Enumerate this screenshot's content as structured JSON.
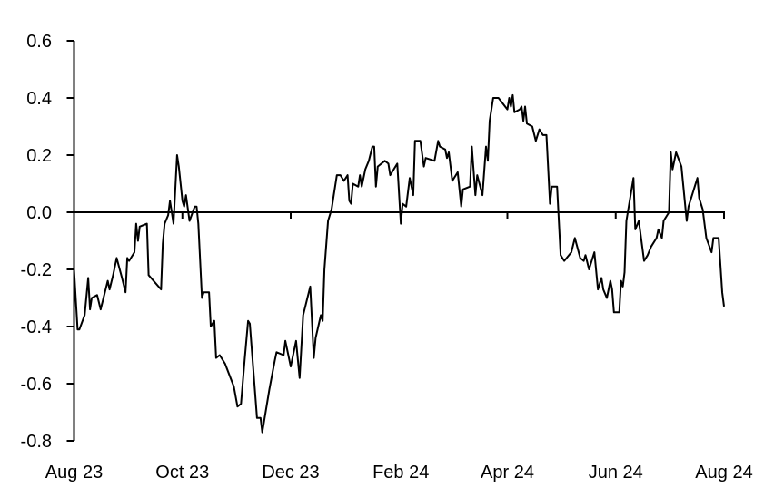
{
  "chart_data": {
    "type": "line",
    "title": "",
    "xlabel": "",
    "ylabel": "",
    "ylim": [
      -0.8,
      0.6
    ],
    "xlim": [
      "2023-08-01",
      "2024-08-01"
    ],
    "grid": false,
    "line_color": "#000000",
    "y_ticks": [
      0.6,
      0.4,
      0.2,
      0.0,
      -0.2,
      -0.4,
      -0.6,
      -0.8
    ],
    "y_tick_labels": [
      "0.6",
      "0.4",
      "0.2",
      "0.0",
      "-0.2",
      "-0.4",
      "-0.6",
      "-0.8"
    ],
    "x_ticks": [
      "2023-08-01",
      "2023-10-01",
      "2023-12-01",
      "2024-02-01",
      "2024-04-01",
      "2024-06-01",
      "2024-08-01"
    ],
    "x_tick_labels": [
      "Aug 23",
      "Oct 23",
      "Dec 23",
      "Feb 24",
      "Apr 24",
      "Jun 24",
      "Aug 24"
    ],
    "series": [
      {
        "x": [
          "2023-08-01",
          "2023-08-03",
          "2023-08-04",
          "2023-08-07",
          "2023-08-09",
          "2023-08-10",
          "2023-08-11",
          "2023-08-14",
          "2023-08-16",
          "2023-08-20",
          "2023-08-21",
          "2023-08-23",
          "2023-08-25",
          "2023-08-28",
          "2023-08-30",
          "2023-08-31",
          "2023-09-01",
          "2023-09-04",
          "2023-09-05",
          "2023-09-06",
          "2023-09-07",
          "2023-09-11",
          "2023-09-12",
          "2023-09-19",
          "2023-09-20",
          "2023-09-21",
          "2023-09-23",
          "2023-09-24",
          "2023-09-26",
          "2023-09-28",
          "2023-09-29",
          "2023-10-01",
          "2023-10-02",
          "2023-10-03",
          "2023-10-05",
          "2023-10-08",
          "2023-10-09",
          "2023-10-10",
          "2023-10-12",
          "2023-10-13",
          "2023-10-16",
          "2023-10-17",
          "2023-10-19",
          "2023-10-20",
          "2023-10-22",
          "2023-10-25",
          "2023-10-30",
          "2023-11-01",
          "2023-11-03",
          "2023-11-05",
          "2023-11-07",
          "2023-11-08",
          "2023-11-12",
          "2023-11-14",
          "2023-11-15",
          "2023-11-19",
          "2023-11-22",
          "2023-11-23",
          "2023-11-27",
          "2023-11-28",
          "2023-12-01",
          "2023-12-04",
          "2023-12-06",
          "2023-12-08",
          "2023-12-12",
          "2023-12-14",
          "2023-12-15",
          "2023-12-18",
          "2023-12-19",
          "2023-12-20",
          "2023-12-22",
          "2023-12-24",
          "2023-12-25",
          "2023-12-27",
          "2023-12-29",
          "2023-12-31",
          "2024-01-02",
          "2024-01-03",
          "2024-01-04",
          "2024-01-05",
          "2024-01-08",
          "2024-01-09",
          "2024-01-10",
          "2024-01-12",
          "2024-01-14",
          "2024-01-16",
          "2024-01-17",
          "2024-01-18",
          "2024-01-19",
          "2024-01-23",
          "2024-01-25",
          "2024-01-26",
          "2024-01-30",
          "2024-02-01",
          "2024-02-02",
          "2024-02-04",
          "2024-02-06",
          "2024-02-08",
          "2024-02-09",
          "2024-02-12",
          "2024-02-14",
          "2024-02-15",
          "2024-02-20",
          "2024-02-22",
          "2024-02-23",
          "2024-02-26",
          "2024-02-27",
          "2024-02-28",
          "2024-03-01",
          "2024-03-04",
          "2024-03-06",
          "2024-03-07",
          "2024-03-11",
          "2024-03-12",
          "2024-03-14",
          "2024-03-15",
          "2024-03-18",
          "2024-03-20",
          "2024-03-21",
          "2024-03-22",
          "2024-03-24",
          "2024-03-27",
          "2024-04-01",
          "2024-04-02",
          "2024-04-03",
          "2024-04-04",
          "2024-04-05",
          "2024-04-08",
          "2024-04-09",
          "2024-04-10",
          "2024-04-11",
          "2024-04-12",
          "2024-04-15",
          "2024-04-17",
          "2024-04-19",
          "2024-04-21",
          "2024-04-23",
          "2024-04-25",
          "2024-04-26",
          "2024-04-29",
          "2024-05-01",
          "2024-05-03",
          "2024-05-07",
          "2024-05-09",
          "2024-05-12",
          "2024-05-14",
          "2024-05-15",
          "2024-05-17",
          "2024-05-20",
          "2024-05-22",
          "2024-05-24",
          "2024-05-25",
          "2024-05-27",
          "2024-05-29",
          "2024-05-30",
          "2024-05-31",
          "2024-06-03",
          "2024-06-04",
          "2024-06-05",
          "2024-06-06",
          "2024-06-07",
          "2024-06-11",
          "2024-06-12",
          "2024-06-14",
          "2024-06-17",
          "2024-06-19",
          "2024-06-21",
          "2024-06-24",
          "2024-06-25",
          "2024-06-27",
          "2024-06-28",
          "2024-07-01",
          "2024-07-02",
          "2024-07-03",
          "2024-07-05",
          "2024-07-08",
          "2024-07-11",
          "2024-07-12",
          "2024-07-17",
          "2024-07-18",
          "2024-07-20",
          "2024-07-22",
          "2024-07-25",
          "2024-07-26",
          "2024-07-29",
          "2024-07-31",
          "2024-08-01"
        ],
        "y": [
          -0.2,
          -0.41,
          -0.41,
          -0.36,
          -0.23,
          -0.34,
          -0.3,
          -0.29,
          -0.34,
          -0.24,
          -0.27,
          -0.22,
          -0.16,
          -0.23,
          -0.28,
          -0.16,
          -0.17,
          -0.14,
          -0.04,
          -0.1,
          -0.05,
          -0.04,
          -0.22,
          -0.27,
          -0.11,
          -0.04,
          -0.01,
          0.04,
          -0.04,
          0.2,
          0.16,
          0.04,
          0.02,
          0.06,
          -0.03,
          0.02,
          0.02,
          -0.04,
          -0.3,
          -0.28,
          -0.28,
          -0.4,
          -0.38,
          -0.51,
          -0.5,
          -0.53,
          -0.61,
          -0.68,
          -0.67,
          -0.52,
          -0.38,
          -0.39,
          -0.72,
          -0.72,
          -0.77,
          -0.62,
          -0.52,
          -0.49,
          -0.5,
          -0.45,
          -0.54,
          -0.45,
          -0.58,
          -0.36,
          -0.26,
          -0.51,
          -0.44,
          -0.36,
          -0.38,
          -0.2,
          -0.03,
          0.01,
          0.05,
          0.13,
          0.13,
          0.11,
          0.13,
          0.04,
          0.03,
          0.1,
          0.09,
          0.13,
          0.09,
          0.15,
          0.18,
          0.23,
          0.23,
          0.09,
          0.16,
          0.18,
          0.17,
          0.13,
          0.17,
          -0.04,
          0.03,
          0.02,
          0.12,
          0.06,
          0.25,
          0.25,
          0.16,
          0.19,
          0.18,
          0.25,
          0.23,
          0.22,
          0.19,
          0.21,
          0.11,
          0.14,
          0.02,
          0.08,
          0.09,
          0.23,
          0.06,
          0.13,
          0.06,
          0.23,
          0.18,
          0.32,
          0.4,
          0.4,
          0.36,
          0.4,
          0.37,
          0.41,
          0.35,
          0.36,
          0.37,
          0.32,
          0.37,
          0.31,
          0.3,
          0.25,
          0.29,
          0.27,
          0.27,
          0.03,
          0.09,
          0.09,
          -0.15,
          -0.17,
          -0.14,
          -0.09,
          -0.16,
          -0.17,
          -0.15,
          -0.2,
          -0.14,
          -0.27,
          -0.23,
          -0.27,
          -0.3,
          -0.24,
          -0.27,
          -0.35,
          -0.35,
          -0.24,
          -0.26,
          -0.21,
          -0.03,
          0.12,
          -0.06,
          -0.03,
          -0.17,
          -0.15,
          -0.12,
          -0.09,
          -0.06,
          -0.09,
          -0.03,
          0.0,
          0.21,
          0.15,
          0.21,
          0.16,
          -0.03,
          0.02,
          0.12,
          0.05,
          0.01,
          -0.09,
          -0.14,
          -0.09,
          -0.09,
          -0.28,
          -0.33
        ]
      }
    ]
  }
}
